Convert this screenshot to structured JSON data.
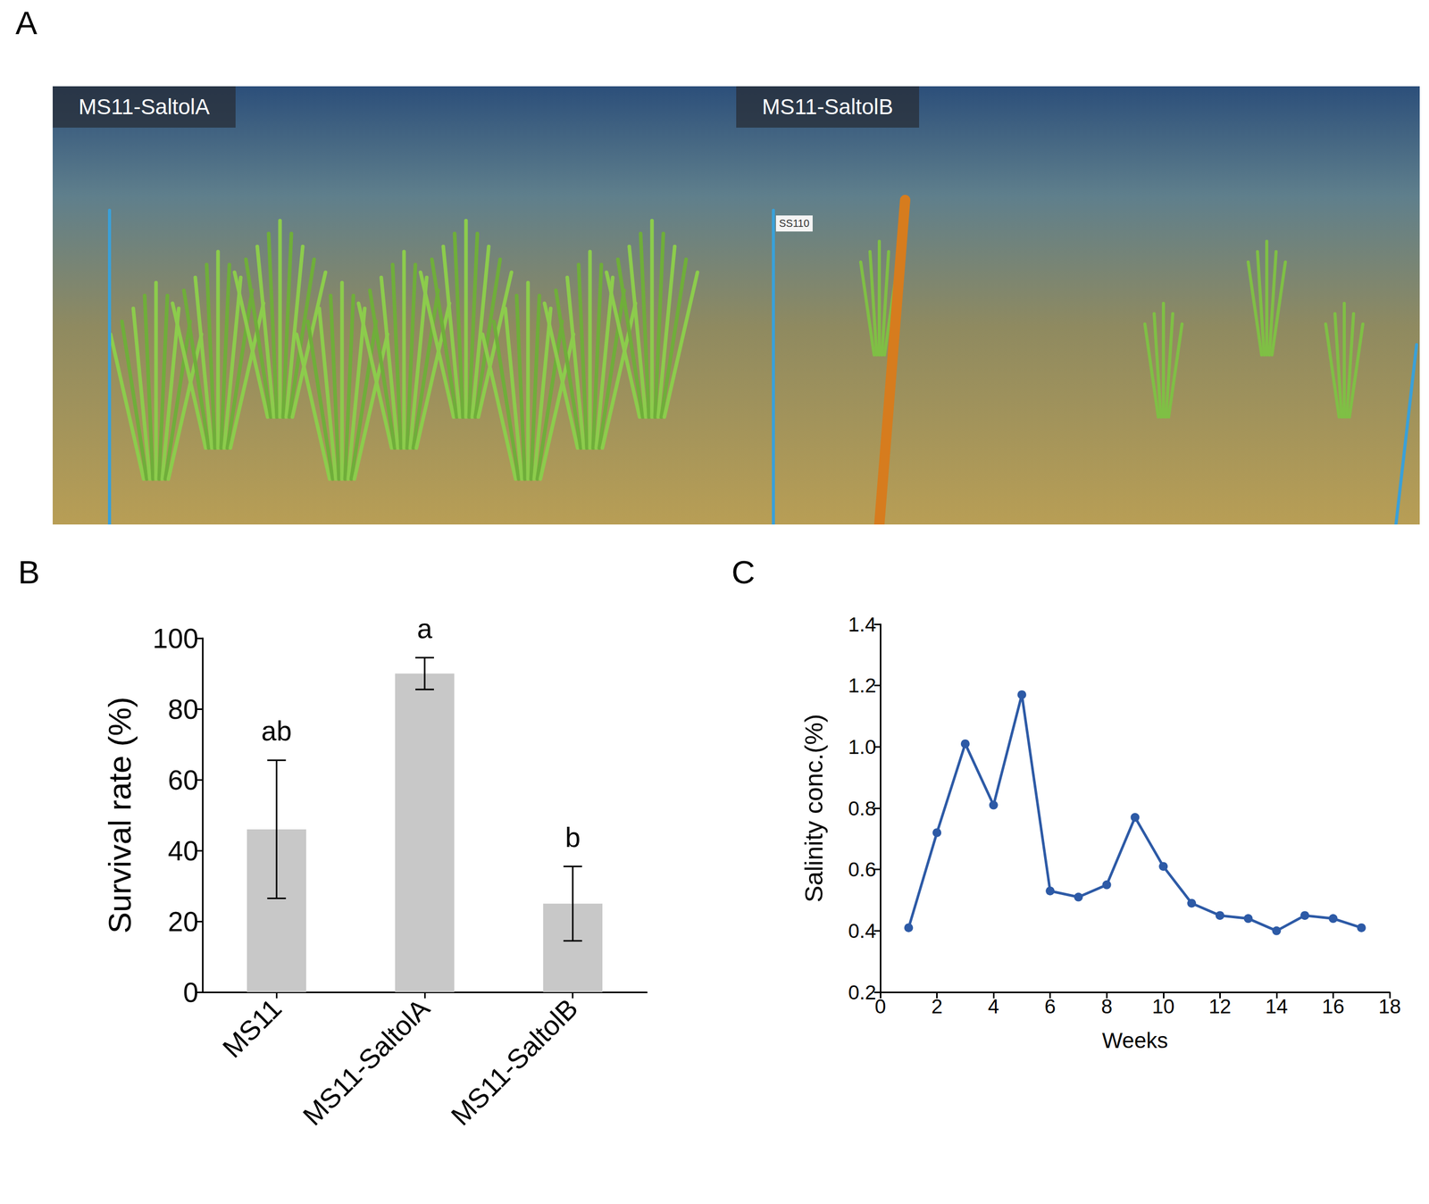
{
  "photo": {
    "title": "A",
    "labels": [
      "MS11-SaltolA",
      "MS11-SaltolB"
    ],
    "signs": [
      "SS110"
    ]
  },
  "chart_data": [
    {
      "type": "bar",
      "title": "B",
      "categories": [
        "MS11",
        "MS11-SaltolA",
        "MS11-SaltolB"
      ],
      "values": [
        46,
        90,
        25
      ],
      "errors": [
        19.5,
        4.5,
        10.5
      ],
      "letters": [
        "ab",
        "a",
        "b"
      ],
      "color": "#c8c8c8",
      "ylabel": "Survival rate (%)",
      "ylim": [
        0,
        100
      ],
      "yticks": [
        0,
        20,
        40,
        60,
        80,
        100
      ],
      "grid": false
    },
    {
      "type": "line",
      "title": "C",
      "x": [
        1,
        2,
        3,
        4,
        5,
        6,
        7,
        8,
        9,
        10,
        11,
        12,
        13,
        14,
        15,
        16,
        17
      ],
      "values": [
        0.41,
        0.72,
        1.01,
        0.81,
        1.17,
        0.53,
        0.51,
        0.55,
        0.77,
        0.61,
        0.49,
        0.45,
        0.44,
        0.4,
        0.45,
        0.44,
        0.41
      ],
      "color": "#2d5aa6",
      "marker": "circle",
      "xlabel": "Weeks",
      "ylabel": "Salinity conc.(%)",
      "xlim": [
        0,
        18
      ],
      "xticks": [
        0,
        2,
        4,
        6,
        8,
        10,
        12,
        14,
        16,
        18
      ],
      "ylim": [
        0.2,
        1.4
      ],
      "yticks": [
        0.2,
        0.4,
        0.6,
        0.8,
        {
          "value": 1,
          "label": "1.0"
        },
        1.2,
        1.4
      ],
      "grid": false
    }
  ]
}
